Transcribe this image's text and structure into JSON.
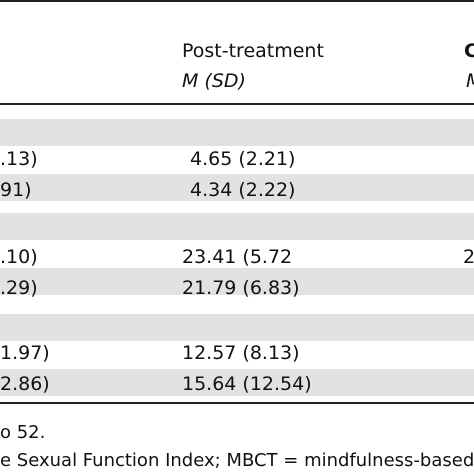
{
  "colors": {
    "band": "#e2e2e2",
    "rule": "#222222",
    "text": "#111111"
  },
  "header": {
    "post_treatment": "Post-treatment",
    "stat_label": "M (SD)",
    "partial_next_col": "C",
    "partial_next_stat": "M"
  },
  "rows": [
    {
      "left_fragment": ".13)",
      "post": "4.65 (2.21)"
    },
    {
      "left_fragment": "91)",
      "post": "4.34 (2.22)"
    },
    {
      "left_fragment": ".10)",
      "post": "23.41 (5.72",
      "right_fragment": "2"
    },
    {
      "left_fragment": ".29)",
      "post": "21.79 (6.83)"
    },
    {
      "left_fragment": "1.97)",
      "post": "12.57 (8.13)"
    },
    {
      "left_fragment": "2.86)",
      "post": "15.64 (12.54)"
    }
  ],
  "footnote": {
    "line1": "o 52.",
    "line2": "e Sexual Function Index; MBCT = mindfulness-based"
  }
}
